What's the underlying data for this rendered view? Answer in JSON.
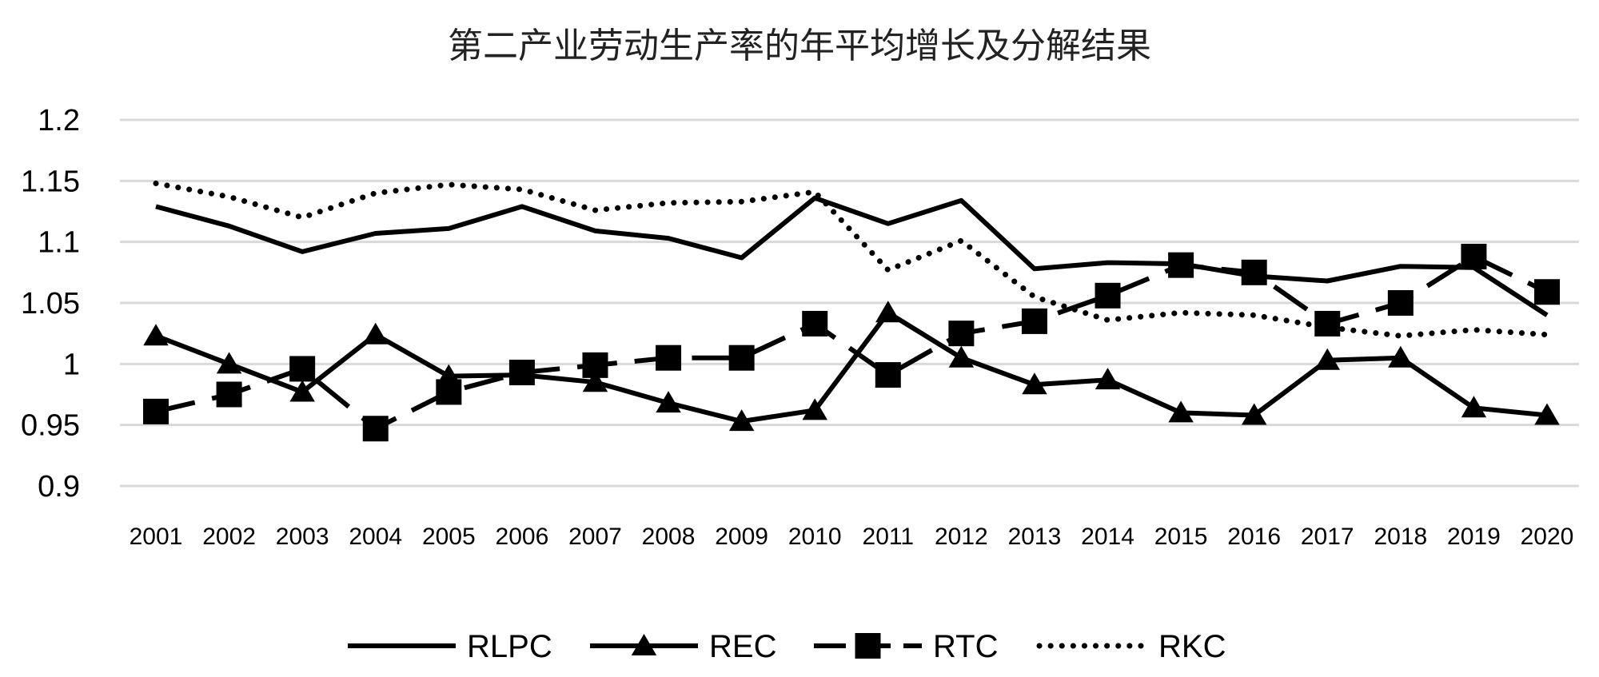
{
  "chart_data": {
    "type": "line",
    "title": "第二产业劳动生产率的年平均增长及分解结果",
    "xlabel": "",
    "ylabel": "",
    "categories": [
      "2001",
      "2002",
      "2003",
      "2004",
      "2005",
      "2006",
      "2007",
      "2008",
      "2009",
      "2010",
      "2011",
      "2012",
      "2013",
      "2014",
      "2015",
      "2016",
      "2017",
      "2018",
      "2019",
      "2020"
    ],
    "ylim": [
      0.9,
      1.2
    ],
    "yticks": [
      0.9,
      0.95,
      1,
      1.05,
      1.1,
      1.15,
      1.2
    ],
    "ytick_labels": [
      "0.9",
      "0.95",
      "1",
      "1.05",
      "1.1",
      "1.15",
      "1.2"
    ],
    "grid": true,
    "legend_position": "bottom",
    "series": [
      {
        "name": "RLPC",
        "style": "solid",
        "marker": "none",
        "values": [
          1.129,
          1.113,
          1.092,
          1.107,
          1.111,
          1.129,
          1.109,
          1.103,
          1.087,
          1.136,
          1.115,
          1.134,
          1.078,
          1.083,
          1.082,
          1.072,
          1.068,
          1.08,
          1.079,
          1.04
        ]
      },
      {
        "name": "REC",
        "style": "solid",
        "marker": "triangle",
        "values": [
          1.023,
          1.0,
          0.977,
          1.024,
          0.99,
          0.991,
          0.985,
          0.968,
          0.953,
          0.962,
          1.042,
          1.005,
          0.983,
          0.987,
          0.96,
          0.958,
          1.003,
          1.005,
          0.964,
          0.958
        ]
      },
      {
        "name": "RTC",
        "style": "dash",
        "marker": "square",
        "values": [
          0.961,
          0.975,
          0.996,
          0.947,
          0.977,
          0.993,
          0.999,
          1.005,
          1.005,
          1.033,
          0.991,
          1.025,
          1.035,
          1.056,
          1.081,
          1.075,
          1.033,
          1.05,
          1.088,
          1.059
        ]
      },
      {
        "name": "RKC",
        "style": "dotted",
        "marker": "none",
        "values": [
          1.148,
          1.137,
          1.12,
          1.14,
          1.147,
          1.143,
          1.126,
          1.132,
          1.133,
          1.141,
          1.077,
          1.101,
          1.055,
          1.036,
          1.042,
          1.04,
          1.03,
          1.023,
          1.028,
          1.024
        ]
      }
    ],
    "colors": {
      "line": "#000000",
      "grid": "#d9d9d9",
      "title": "#222222"
    }
  }
}
